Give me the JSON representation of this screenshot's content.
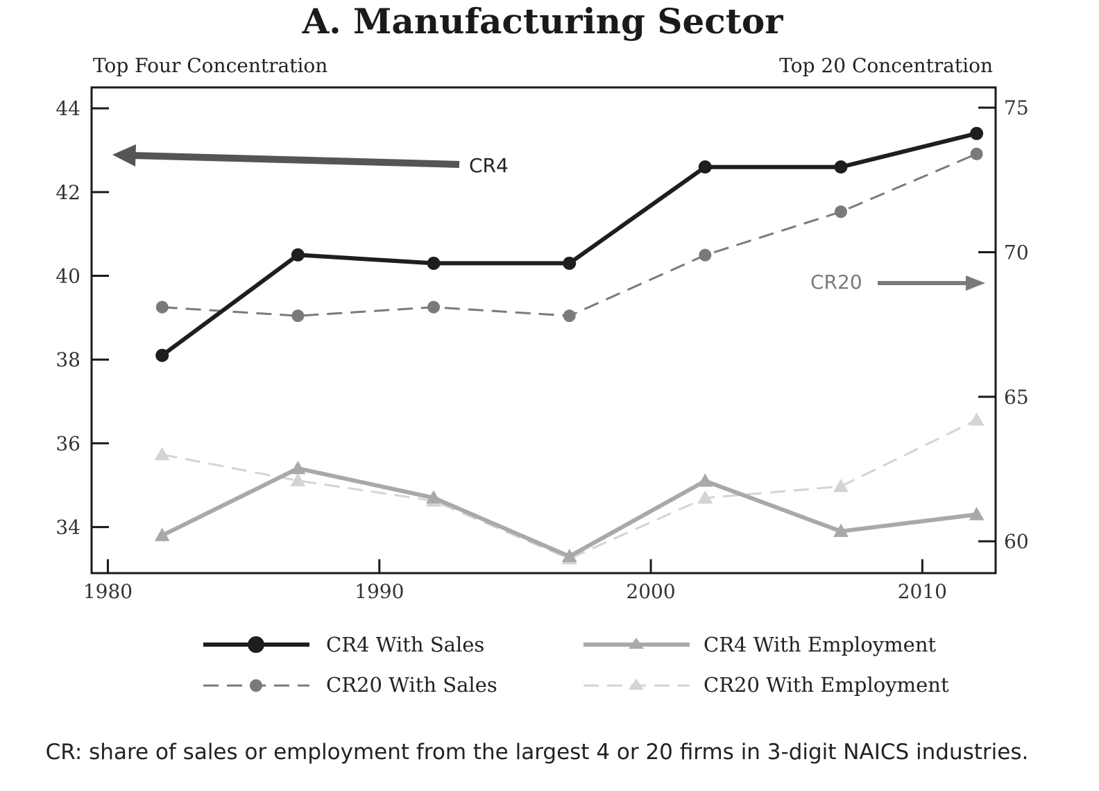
{
  "chart_data": {
    "type": "line",
    "title": "A. Manufacturing Sector",
    "left_axis_label": "Top Four Concentration",
    "right_axis_label": "Top 20 Concentration",
    "left_ylim": [
      32.9,
      44.5
    ],
    "left_yticks": [
      "44",
      "42",
      "40",
      "38",
      "36",
      "34"
    ],
    "right_ylim": [
      58.9,
      75.7
    ],
    "right_yticks": [
      "75",
      "70",
      "65",
      "60"
    ],
    "xlim": [
      1979.4,
      2012.7
    ],
    "xticks": [
      "1980",
      "1990",
      "2000",
      "2010"
    ],
    "grid": false,
    "legend_position": "bottom",
    "x": [
      1982,
      1987,
      1992,
      1997,
      2002,
      2007,
      2012
    ],
    "series": [
      {
        "name": "CR4 With Sales",
        "axis": "left",
        "values": [
          38.1,
          40.5,
          40.3,
          40.3,
          42.6,
          42.6,
          43.4
        ],
        "color": "#1e1e1e",
        "dash": false,
        "marker": "circle"
      },
      {
        "name": "CR4 With Employment",
        "axis": "left",
        "values": [
          33.8,
          35.4,
          34.7,
          33.3,
          35.1,
          33.9,
          34.3
        ],
        "color": "#a9a9a9",
        "dash": false,
        "marker": "triangle"
      },
      {
        "name": "CR20 With Sales",
        "axis": "right",
        "values": [
          68.1,
          67.8,
          68.1,
          67.8,
          69.9,
          71.4,
          73.4
        ],
        "color": "#7a7a7a",
        "dash": true,
        "marker": "circle"
      },
      {
        "name": "CR20 With Employment",
        "axis": "right",
        "values": [
          63.0,
          62.1,
          61.4,
          59.4,
          61.5,
          61.9,
          64.2
        ],
        "color": "#d4d4d4",
        "dash": true,
        "marker": "triangle"
      }
    ],
    "annotations": [
      {
        "text": "CR4",
        "arrow": "points to left axis"
      },
      {
        "text": "CR20",
        "arrow": "points to right axis"
      }
    ],
    "footnote": "CR: share of sales or employment from the largest 4 or 20 firms in 3-digit NAICS industries."
  }
}
